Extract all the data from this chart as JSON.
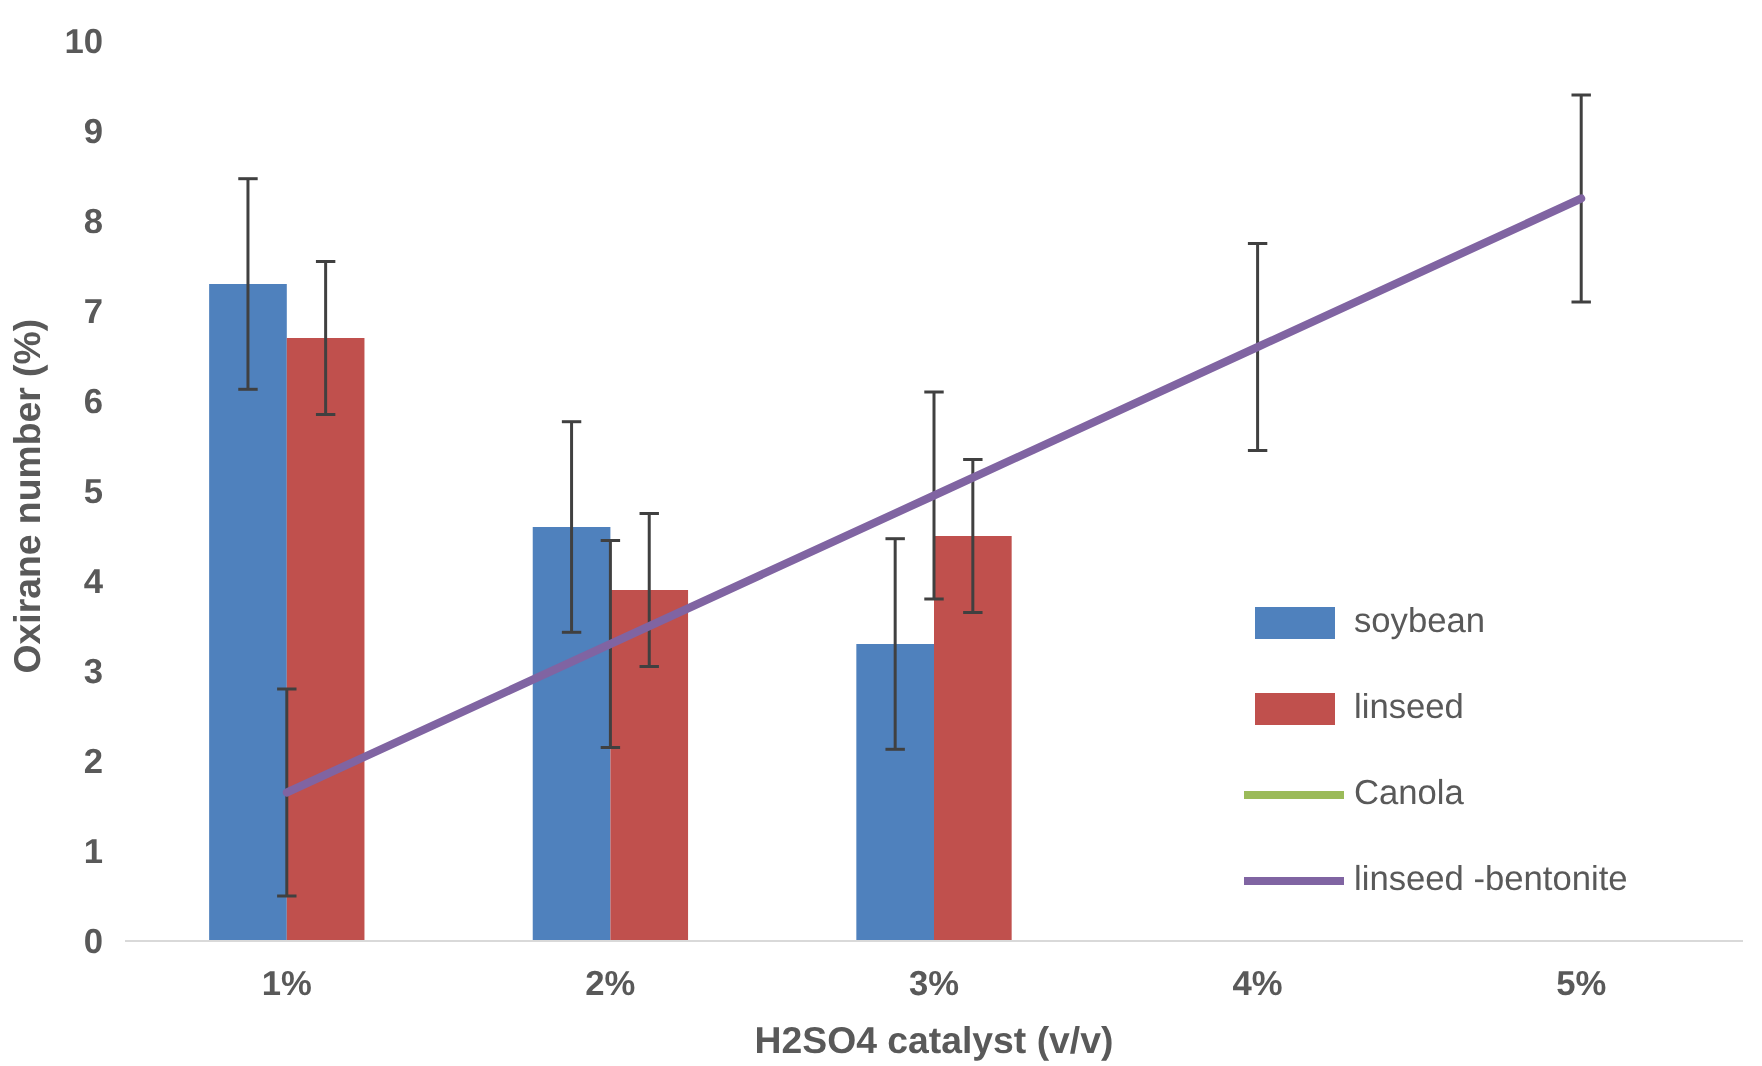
{
  "chart_data": {
    "type": "bar",
    "xlabel": "H2SO4 catalyst (v/v)",
    "ylabel": "Oxirane number  (%)",
    "categories": [
      "1%",
      "2%",
      "3%",
      "4%",
      "5%"
    ],
    "ylim": [
      0,
      10
    ],
    "yticks": [
      0,
      1,
      2,
      3,
      4,
      5,
      6,
      7,
      8,
      9,
      10
    ],
    "grid": false,
    "legend": "right",
    "series": [
      {
        "name": "soybean",
        "color": "#4f81bd",
        "values": [
          7.3,
          4.6,
          3.3,
          null,
          null
        ],
        "errors": [
          1.17,
          1.17,
          1.17,
          null,
          null
        ]
      },
      {
        "name": "linseed",
        "color": "#c0504d",
        "values": [
          6.7,
          3.9,
          4.5,
          null,
          null
        ],
        "errors": [
          0.85,
          0.85,
          0.85,
          null,
          null
        ]
      },
      {
        "name": "Canola",
        "type": "line",
        "color": "#9bbb59",
        "values": [
          null,
          null,
          null,
          null,
          null
        ]
      },
      {
        "name": "linseed -bentonite",
        "type": "line",
        "color": "#8064a2",
        "values": [
          1.65,
          3.3,
          4.95,
          6.6,
          8.25
        ],
        "errors": [
          1.15,
          1.15,
          1.15,
          1.15,
          1.15
        ]
      }
    ]
  }
}
